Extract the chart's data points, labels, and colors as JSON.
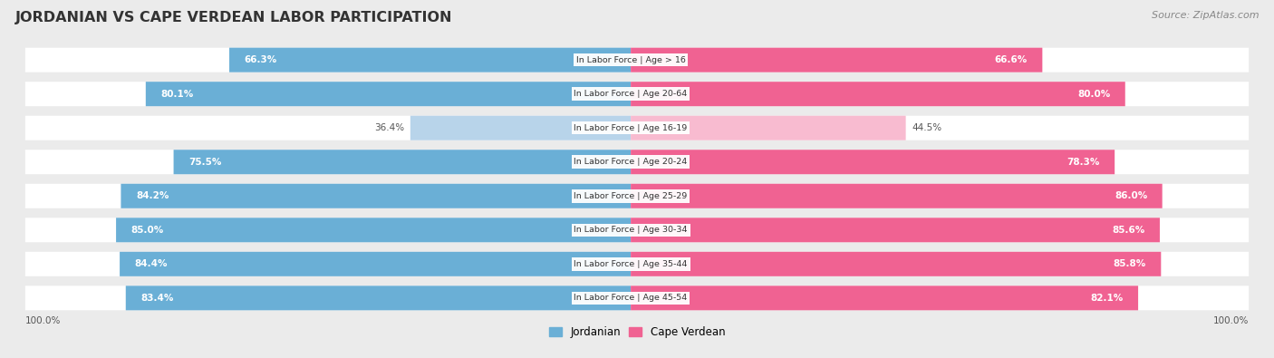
{
  "title": "Jordanian vs Cape Verdean Labor Participation",
  "source": "Source: ZipAtlas.com",
  "categories": [
    "In Labor Force | Age > 16",
    "In Labor Force | Age 20-64",
    "In Labor Force | Age 16-19",
    "In Labor Force | Age 20-24",
    "In Labor Force | Age 25-29",
    "In Labor Force | Age 30-34",
    "In Labor Force | Age 35-44",
    "In Labor Force | Age 45-54"
  ],
  "jordanian": [
    66.3,
    80.1,
    36.4,
    75.5,
    84.2,
    85.0,
    84.4,
    83.4
  ],
  "cape_verdean": [
    66.6,
    80.0,
    44.5,
    78.3,
    86.0,
    85.6,
    85.8,
    82.1
  ],
  "jordanian_color": "#6aafd6",
  "jordanian_color_light": "#b8d4ea",
  "cape_verdean_color": "#f06292",
  "cape_verdean_color_light": "#f8bbd0",
  "row_bg_color": "#e8e8e8",
  "bar_bg_color": "#f5f5f5",
  "bg_color": "#ebebeb",
  "legend_jordanian": "Jordanian",
  "legend_cape_verdean": "Cape Verdean"
}
